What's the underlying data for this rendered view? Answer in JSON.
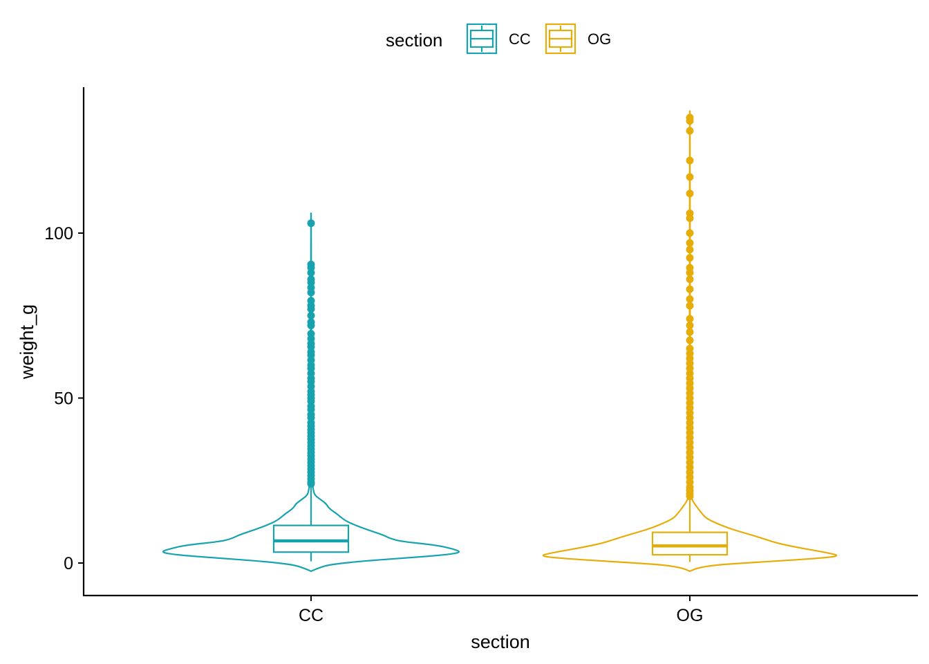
{
  "chart_data": {
    "type": "violin",
    "title": "",
    "xlabel": "section",
    "ylabel": "weight_g",
    "ylim": [
      -10,
      144
    ],
    "yticks": [
      0,
      50,
      100
    ],
    "categories": [
      "CC",
      "OG"
    ],
    "grid": false,
    "legend": {
      "placement": "top",
      "title": "section",
      "entries": [
        "CC",
        "OG"
      ]
    },
    "series": [
      {
        "name": "CC",
        "color": "#17A2B0",
        "range": [
          -2.5,
          106
        ],
        "box": {
          "q1": 3.3,
          "median": 6.7,
          "q3": 11.4,
          "whisker_low": 0.5,
          "whisker_high": 23.5
        },
        "density": [
          [
            -2.5,
            0.0
          ],
          [
            -1.5,
            0.05
          ],
          [
            -0.5,
            0.12
          ],
          [
            0.5,
            0.32
          ],
          [
            1.5,
            0.62
          ],
          [
            2.5,
            0.9
          ],
          [
            3.3,
            1.0
          ],
          [
            4.3,
            0.94
          ],
          [
            5.5,
            0.82
          ],
          [
            6.5,
            0.6
          ],
          [
            7.5,
            0.52
          ],
          [
            8.5,
            0.48
          ],
          [
            10,
            0.38
          ],
          [
            11.5,
            0.29
          ],
          [
            13,
            0.22
          ],
          [
            15,
            0.17
          ],
          [
            16.5,
            0.12
          ],
          [
            18,
            0.1
          ],
          [
            19,
            0.07
          ],
          [
            20.5,
            0.025
          ],
          [
            22,
            0.015
          ],
          [
            25,
            0.008
          ],
          [
            30,
            0.005
          ],
          [
            40,
            0.004
          ],
          [
            50,
            0.003
          ],
          [
            70,
            0.002
          ],
          [
            90,
            0.001
          ],
          [
            106,
            0.0
          ]
        ],
        "outliers": [
          103,
          90.5,
          89.5,
          88,
          86,
          85,
          83.5,
          82,
          79.5,
          78,
          77,
          75,
          73,
          72,
          69.5,
          68,
          66.5,
          65.5,
          64,
          63,
          61.5,
          60,
          59,
          57.5,
          56,
          55,
          53.5,
          52,
          51,
          50,
          49,
          47.5,
          46.5,
          45,
          44,
          42.5,
          41.5,
          40.5,
          39.5,
          38.5,
          37.5,
          36.5,
          35.5,
          34.5,
          33.5,
          32.5,
          31.5,
          30.5,
          29.5,
          28.5,
          27.5,
          26.5,
          25.5,
          24.5,
          24
        ]
      },
      {
        "name": "OG",
        "color": "#E6AD09",
        "range": [
          -2.5,
          137
        ],
        "box": {
          "q1": 2.5,
          "median": 5.2,
          "q3": 9.3,
          "whisker_low": 0.3,
          "whisker_high": 19.5
        },
        "density": [
          [
            -2.5,
            0.0
          ],
          [
            -1.5,
            0.05
          ],
          [
            -0.5,
            0.18
          ],
          [
            0.5,
            0.55
          ],
          [
            1.5,
            0.88
          ],
          [
            2.2,
            1.0
          ],
          [
            3.2,
            0.9
          ],
          [
            4.5,
            0.74
          ],
          [
            6,
            0.58
          ],
          [
            7.5,
            0.48
          ],
          [
            9,
            0.37
          ],
          [
            10.5,
            0.26
          ],
          [
            12,
            0.18
          ],
          [
            13.5,
            0.11
          ],
          [
            15,
            0.08
          ],
          [
            16.5,
            0.055
          ],
          [
            18,
            0.03
          ],
          [
            19.5,
            0.012
          ],
          [
            21,
            0.006
          ],
          [
            25,
            0.004
          ],
          [
            35,
            0.003
          ],
          [
            50,
            0.003
          ],
          [
            70,
            0.002
          ],
          [
            100,
            0.001
          ],
          [
            120,
            0.0007
          ],
          [
            137,
            0.0
          ]
        ],
        "outliers": [
          135,
          134,
          131,
          122,
          117,
          112,
          106,
          104.5,
          100,
          97,
          95,
          92.5,
          89.5,
          88,
          86,
          83,
          80,
          78,
          74,
          72,
          70,
          67.5,
          65,
          63.5,
          62,
          60.5,
          59,
          57.5,
          56,
          54.5,
          53,
          51.5,
          50,
          48.5,
          47,
          45.5,
          44,
          42.5,
          41,
          39.5,
          38,
          36.5,
          35,
          33.5,
          32,
          30.5,
          29,
          27.5,
          26,
          24.5,
          23,
          22,
          21,
          20.2
        ]
      }
    ]
  }
}
